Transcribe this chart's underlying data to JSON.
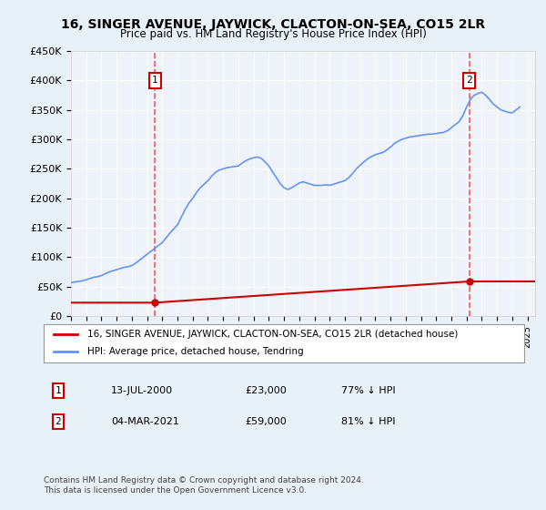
{
  "title": "16, SINGER AVENUE, JAYWICK, CLACTON-ON-SEA, CO15 2LR",
  "subtitle": "Price paid vs. HM Land Registry's House Price Index (HPI)",
  "legend_line1": "16, SINGER AVENUE, JAYWICK, CLACTON-ON-SEA, CO15 2LR (detached house)",
  "legend_line2": "HPI: Average price, detached house, Tendring",
  "footer1": "Contains HM Land Registry data © Crown copyright and database right 2024.",
  "footer2": "This data is licensed under the Open Government Licence v3.0.",
  "transaction1_label": "1",
  "transaction1_date": "13-JUL-2000",
  "transaction1_price": "£23,000",
  "transaction1_hpi": "77% ↓ HPI",
  "transaction2_label": "2",
  "transaction2_date": "04-MAR-2021",
  "transaction2_price": "£59,000",
  "transaction2_hpi": "81% ↓ HPI",
  "hpi_color": "#6495ED",
  "price_color": "#CC0000",
  "marker_color": "#CC0000",
  "dashed_line_color": "#FF4444",
  "background_color": "#E8F0F8",
  "plot_bg_color": "#EEF3FA",
  "ylim": [
    0,
    450000
  ],
  "xlim_start": 1995.0,
  "xlim_end": 2025.5,
  "transaction1_x": 2000.53,
  "transaction1_y": 23000,
  "transaction2_x": 2021.17,
  "transaction2_y": 59000,
  "hpi_years": [
    1995,
    1995.25,
    1995.5,
    1995.75,
    1996,
    1996.25,
    1996.5,
    1996.75,
    1997,
    1997.25,
    1997.5,
    1997.75,
    1998,
    1998.25,
    1998.5,
    1998.75,
    1999,
    1999.25,
    1999.5,
    1999.75,
    2000,
    2000.25,
    2000.5,
    2000.75,
    2001,
    2001.25,
    2001.5,
    2001.75,
    2002,
    2002.25,
    2002.5,
    2002.75,
    2003,
    2003.25,
    2003.5,
    2003.75,
    2004,
    2004.25,
    2004.5,
    2004.75,
    2005,
    2005.25,
    2005.5,
    2005.75,
    2006,
    2006.25,
    2006.5,
    2006.75,
    2007,
    2007.25,
    2007.5,
    2007.75,
    2008,
    2008.25,
    2008.5,
    2008.75,
    2009,
    2009.25,
    2009.5,
    2009.75,
    2010,
    2010.25,
    2010.5,
    2010.75,
    2011,
    2011.25,
    2011.5,
    2011.75,
    2012,
    2012.25,
    2012.5,
    2012.75,
    2013,
    2013.25,
    2013.5,
    2013.75,
    2014,
    2014.25,
    2014.5,
    2014.75,
    2015,
    2015.25,
    2015.5,
    2015.75,
    2016,
    2016.25,
    2016.5,
    2016.75,
    2017,
    2017.25,
    2017.5,
    2017.75,
    2018,
    2018.25,
    2018.5,
    2018.75,
    2019,
    2019.25,
    2019.5,
    2019.75,
    2020,
    2020.25,
    2020.5,
    2020.75,
    2021,
    2021.25,
    2021.5,
    2021.75,
    2022,
    2022.25,
    2022.5,
    2022.75,
    2023,
    2023.25,
    2023.5,
    2023.75,
    2024,
    2024.25,
    2024.5
  ],
  "hpi_values": [
    57000,
    58000,
    59000,
    60000,
    62000,
    64000,
    66000,
    67000,
    69000,
    72000,
    75000,
    77000,
    79000,
    81000,
    83000,
    84000,
    86000,
    90000,
    95000,
    100000,
    105000,
    110000,
    115000,
    120000,
    125000,
    133000,
    141000,
    148000,
    155000,
    168000,
    181000,
    192000,
    200000,
    210000,
    218000,
    224000,
    230000,
    238000,
    244000,
    248000,
    250000,
    252000,
    253000,
    254000,
    255000,
    260000,
    264000,
    267000,
    269000,
    270000,
    268000,
    262000,
    255000,
    245000,
    235000,
    225000,
    218000,
    215000,
    218000,
    222000,
    226000,
    228000,
    226000,
    224000,
    222000,
    222000,
    222000,
    223000,
    222000,
    224000,
    226000,
    228000,
    230000,
    235000,
    242000,
    250000,
    256000,
    262000,
    267000,
    271000,
    274000,
    276000,
    278000,
    282000,
    287000,
    293000,
    297000,
    300000,
    302000,
    304000,
    305000,
    306000,
    307000,
    308000,
    309000,
    309000,
    310000,
    311000,
    312000,
    315000,
    320000,
    325000,
    330000,
    340000,
    355000,
    368000,
    375000,
    378000,
    380000,
    375000,
    368000,
    360000,
    355000,
    350000,
    348000,
    346000,
    345000,
    350000,
    355000
  ],
  "yticks": [
    0,
    50000,
    100000,
    150000,
    200000,
    250000,
    300000,
    350000,
    400000,
    450000
  ],
  "ytick_labels": [
    "£0",
    "£50K",
    "£100K",
    "£150K",
    "£200K",
    "£250K",
    "£300K",
    "£350K",
    "£400K",
    "£450K"
  ],
  "xtick_years": [
    1995,
    1996,
    1997,
    1998,
    1999,
    2000,
    2001,
    2002,
    2003,
    2004,
    2005,
    2006,
    2007,
    2008,
    2009,
    2010,
    2011,
    2012,
    2013,
    2014,
    2015,
    2016,
    2017,
    2018,
    2019,
    2020,
    2021,
    2022,
    2023,
    2024,
    2025
  ]
}
